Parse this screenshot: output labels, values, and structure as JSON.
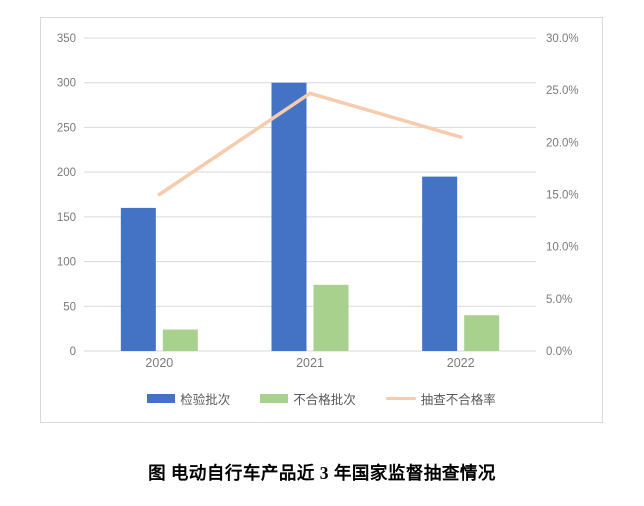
{
  "caption": "图 电动自行车产品近 3 年国家监督抽查情况",
  "colors": {
    "bar_inspected": "#4472C4",
    "bar_nonconforming": "#A9D18E",
    "rate_line": "#F7CBAC",
    "gridline": "#D9D9D9",
    "axis_text": "#7a7a7a",
    "legend_text": "#595959",
    "chart_border": "#D9D9D9"
  },
  "chart_data": {
    "type": "combo",
    "title": "",
    "categories": [
      "2020",
      "2021",
      "2022"
    ],
    "series": [
      {
        "name": "检验批次",
        "type": "bar",
        "axis": "left",
        "color": "#4472C4",
        "values": [
          160,
          300,
          195
        ]
      },
      {
        "name": "不合格批次",
        "type": "bar",
        "axis": "left",
        "color": "#A9D18E",
        "values": [
          24,
          74,
          40
        ]
      },
      {
        "name": "抽查不合格率",
        "type": "line",
        "axis": "right",
        "color": "#F7CBAC",
        "unit": "%",
        "values": [
          15.0,
          24.7,
          20.5
        ]
      }
    ],
    "left_axis": {
      "min": 0,
      "max": 350,
      "step": 50,
      "ticks": [
        "0",
        "50",
        "100",
        "150",
        "200",
        "250",
        "300",
        "350"
      ]
    },
    "right_axis": {
      "min": 0,
      "max": 30,
      "step": 5,
      "ticks": [
        "0.0%",
        "5.0%",
        "10.0%",
        "15.0%",
        "20.0%",
        "25.0%",
        "30.0%"
      ]
    },
    "grid": true,
    "legend_position": "bottom"
  }
}
